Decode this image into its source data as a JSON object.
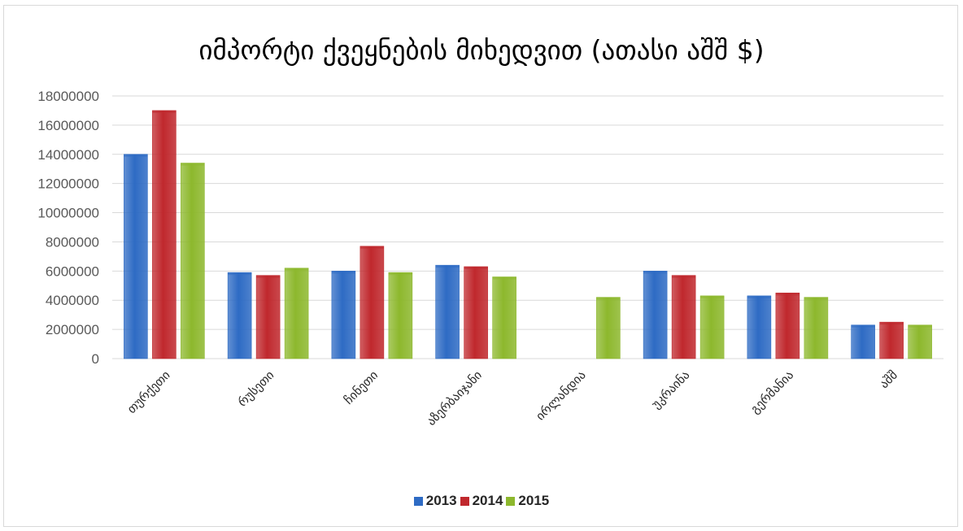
{
  "chart_data": {
    "type": "bar",
    "title": "იმპორტი ქვეყნების მიხედვით (ათასი აშშ $)",
    "xlabel": "",
    "ylabel": "",
    "ylim": [
      0,
      18000000
    ],
    "yticks": [
      "0",
      "2000000",
      "4000000",
      "6000000",
      "8000000",
      "10000000",
      "12000000",
      "14000000",
      "16000000",
      "18000000"
    ],
    "categories": [
      "თურქეთი",
      "რუსეთი",
      "ჩინეთი",
      "აზერბაიჯანი",
      "ირლანდია",
      "უკრაინა",
      "გერმანია",
      "აშშ"
    ],
    "series": [
      {
        "name": "2013",
        "color": "#2e6bc4",
        "values": [
          14000000,
          5900000,
          6000000,
          6400000,
          0,
          6000000,
          4300000,
          2300000
        ]
      },
      {
        "name": "2014",
        "color": "#c0282d",
        "values": [
          17000000,
          5700000,
          7700000,
          6300000,
          0,
          5700000,
          4500000,
          2500000
        ]
      },
      {
        "name": "2015",
        "color": "#8db82d",
        "values": [
          13400000,
          6200000,
          5900000,
          5600000,
          4200000,
          4300000,
          4200000,
          2300000
        ]
      }
    ],
    "grid": true,
    "legend_position": "bottom"
  }
}
